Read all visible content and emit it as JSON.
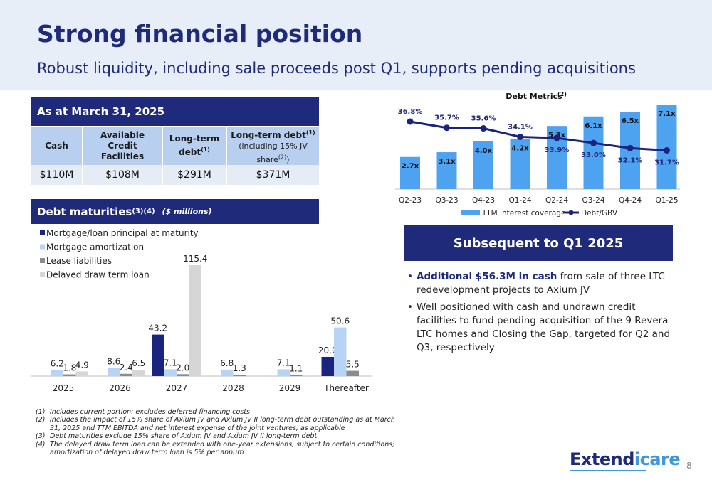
{
  "header": {
    "title": "Strong financial position",
    "subtitle": "Robust liquidity, including sale proceeds post Q1, supports pending acquisitions"
  },
  "position": {
    "heading": "As at March 31, 2025",
    "columns": [
      {
        "label": "Cash",
        "sup": "",
        "small": ""
      },
      {
        "label": "Available Credit Facilities",
        "sup": "",
        "small": ""
      },
      {
        "label": "Long-term debt",
        "sup": "(1)",
        "small": ""
      },
      {
        "label": "Long-term debt",
        "sup": "(1)",
        "small": "(including 15% JV share",
        "small_sup": "(2)",
        "small_end": ")"
      }
    ],
    "values": [
      "$110M",
      "$108M",
      "$291M",
      "$371M"
    ]
  },
  "maturities": {
    "heading": "Debt maturities",
    "heading_sup": "(3)(4)",
    "unit_note": "($ millions)"
  },
  "chart_data": [
    {
      "type": "bar",
      "title": "Debt maturities (3)(4) ($ millions)",
      "categories": [
        "2025",
        "2026",
        "2027",
        "2028",
        "2029",
        "Thereafter"
      ],
      "legend": "top-left",
      "series": [
        {
          "name": "Mortgage/loan principal at maturity",
          "color": "#1a237e",
          "values": [
            0,
            0,
            43.2,
            0,
            0,
            20.0
          ],
          "labels": [
            "-",
            "",
            "43.2",
            "",
            "",
            "20.0"
          ]
        },
        {
          "name": "Mortgage amortization",
          "color": "#b8d4f5",
          "values": [
            6.2,
            8.6,
            7.1,
            6.8,
            7.1,
            50.6
          ],
          "labels": [
            "6.2",
            "8.6",
            "7.1",
            "6.8",
            "7.1",
            "50.6"
          ]
        },
        {
          "name": "Lease liabilities",
          "color": "#8c8c8c",
          "values": [
            1.8,
            2.4,
            2.0,
            1.3,
            1.1,
            5.5
          ],
          "labels": [
            "1.8",
            "2.4",
            "2.0",
            "1.3",
            "1.1",
            "5.5"
          ]
        },
        {
          "name": "Delayed draw term loan",
          "color": "#d6d6d6",
          "values": [
            4.9,
            6.5,
            115.4,
            0,
            0,
            0
          ],
          "labels": [
            "4.9",
            "6.5",
            "115.4",
            "",
            "",
            ""
          ]
        }
      ],
      "ymax": 115.4
    },
    {
      "type": "bar",
      "title": "Debt Metrics",
      "title_sup": "(2)",
      "categories": [
        "Q2-23",
        "Q3-23",
        "Q4-23",
        "Q1-24",
        "Q2-24",
        "Q3-24",
        "Q4-24",
        "Q1-25"
      ],
      "legend": "bottom",
      "series": [
        {
          "name": "TTM interest coverage",
          "type": "bar",
          "color": "#4da3f0",
          "values": [
            2.7,
            3.1,
            4.0,
            4.2,
            5.3,
            6.1,
            6.5,
            7.1
          ],
          "labels": [
            "2.7x",
            "3.1x",
            "4.0x",
            "4.2x",
            "5.3x",
            "6.1x",
            "6.5x",
            "7.1x"
          ]
        },
        {
          "name": "Debt/GBV",
          "type": "line",
          "color": "#1a237e",
          "values": [
            36.8,
            35.7,
            35.6,
            34.1,
            33.9,
            33.0,
            32.1,
            31.7
          ],
          "labels": [
            "36.8%",
            "35.7%",
            "35.6%",
            "34.1%",
            "33.9%",
            "33.0%",
            "32.1%",
            "31.7%"
          ]
        }
      ]
    }
  ],
  "subsequent": {
    "heading": "Subsequent to Q1 2025",
    "bullet1_bold": "Additional $56.3M in cash",
    "bullet1_rest": " from sale of three LTC redevelopment projects to Axium JV",
    "bullet2": "Well positioned with cash and undrawn credit facilities to fund pending acquisition of the 9 Revera LTC homes and Closing the Gap, targeted for Q2 and Q3, respectively"
  },
  "footnotes": [
    {
      "num": "(1)",
      "text": "Includes current portion; excludes deferred financing costs"
    },
    {
      "num": "(2)",
      "text": "Includes the impact of 15% share of Axium JV and Axium JV II long-term debt outstanding as at March 31, 2025 and TTM EBITDA and net interest expense of the joint ventures, as applicable"
    },
    {
      "num": "(3)",
      "text": "Debt maturities exclude 15% share of Axium JV and Axium JV II long-term debt"
    },
    {
      "num": "(4)",
      "text": "The delayed draw term loan can be extended with one-year extensions, subject to certain conditions; amortization of delayed draw term loan is 5% per annum"
    }
  ],
  "logo": {
    "part1": "Extend",
    "part2": "icare"
  },
  "page_number": "8"
}
